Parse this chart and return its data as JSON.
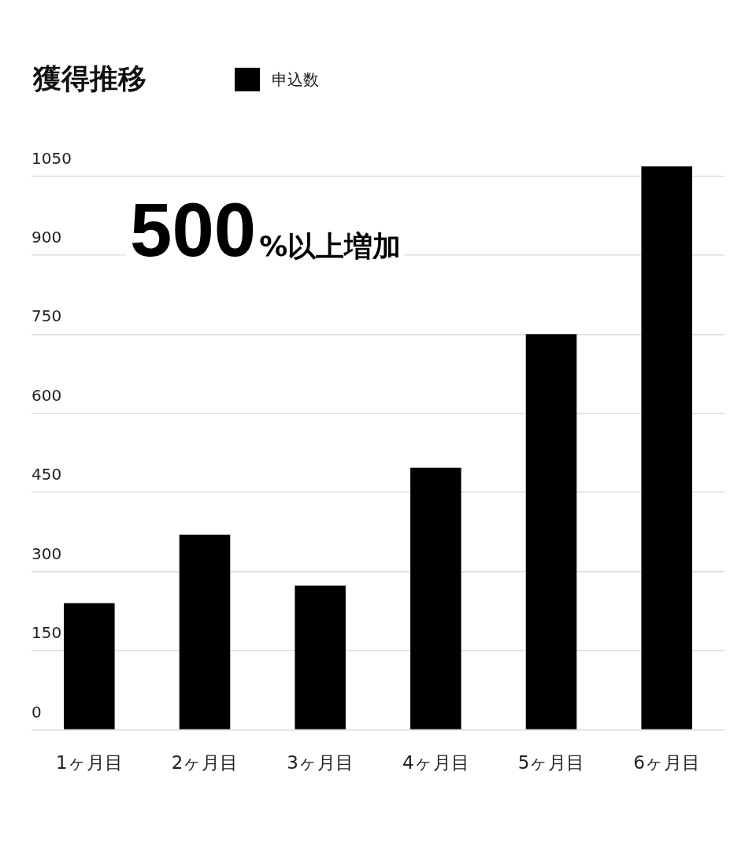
{
  "chart_data": {
    "type": "bar",
    "title": "獲得推移",
    "legend": "top left",
    "categories": [
      "1ヶ月目",
      "2ヶ月目",
      "3ヶ月目",
      "4ヶ月目",
      "5ヶ月目",
      "6ヶ月目"
    ],
    "series": [
      {
        "name": "申込数",
        "color": "#000000",
        "values": [
          240,
          370,
          273,
          497,
          750,
          1068
        ]
      }
    ],
    "ylim": [
      0,
      1070
    ],
    "yticks": [
      0,
      150,
      300,
      450,
      600,
      750,
      900,
      1050
    ],
    "grid": "y",
    "annotations": [
      "500%以上増加"
    ]
  }
}
